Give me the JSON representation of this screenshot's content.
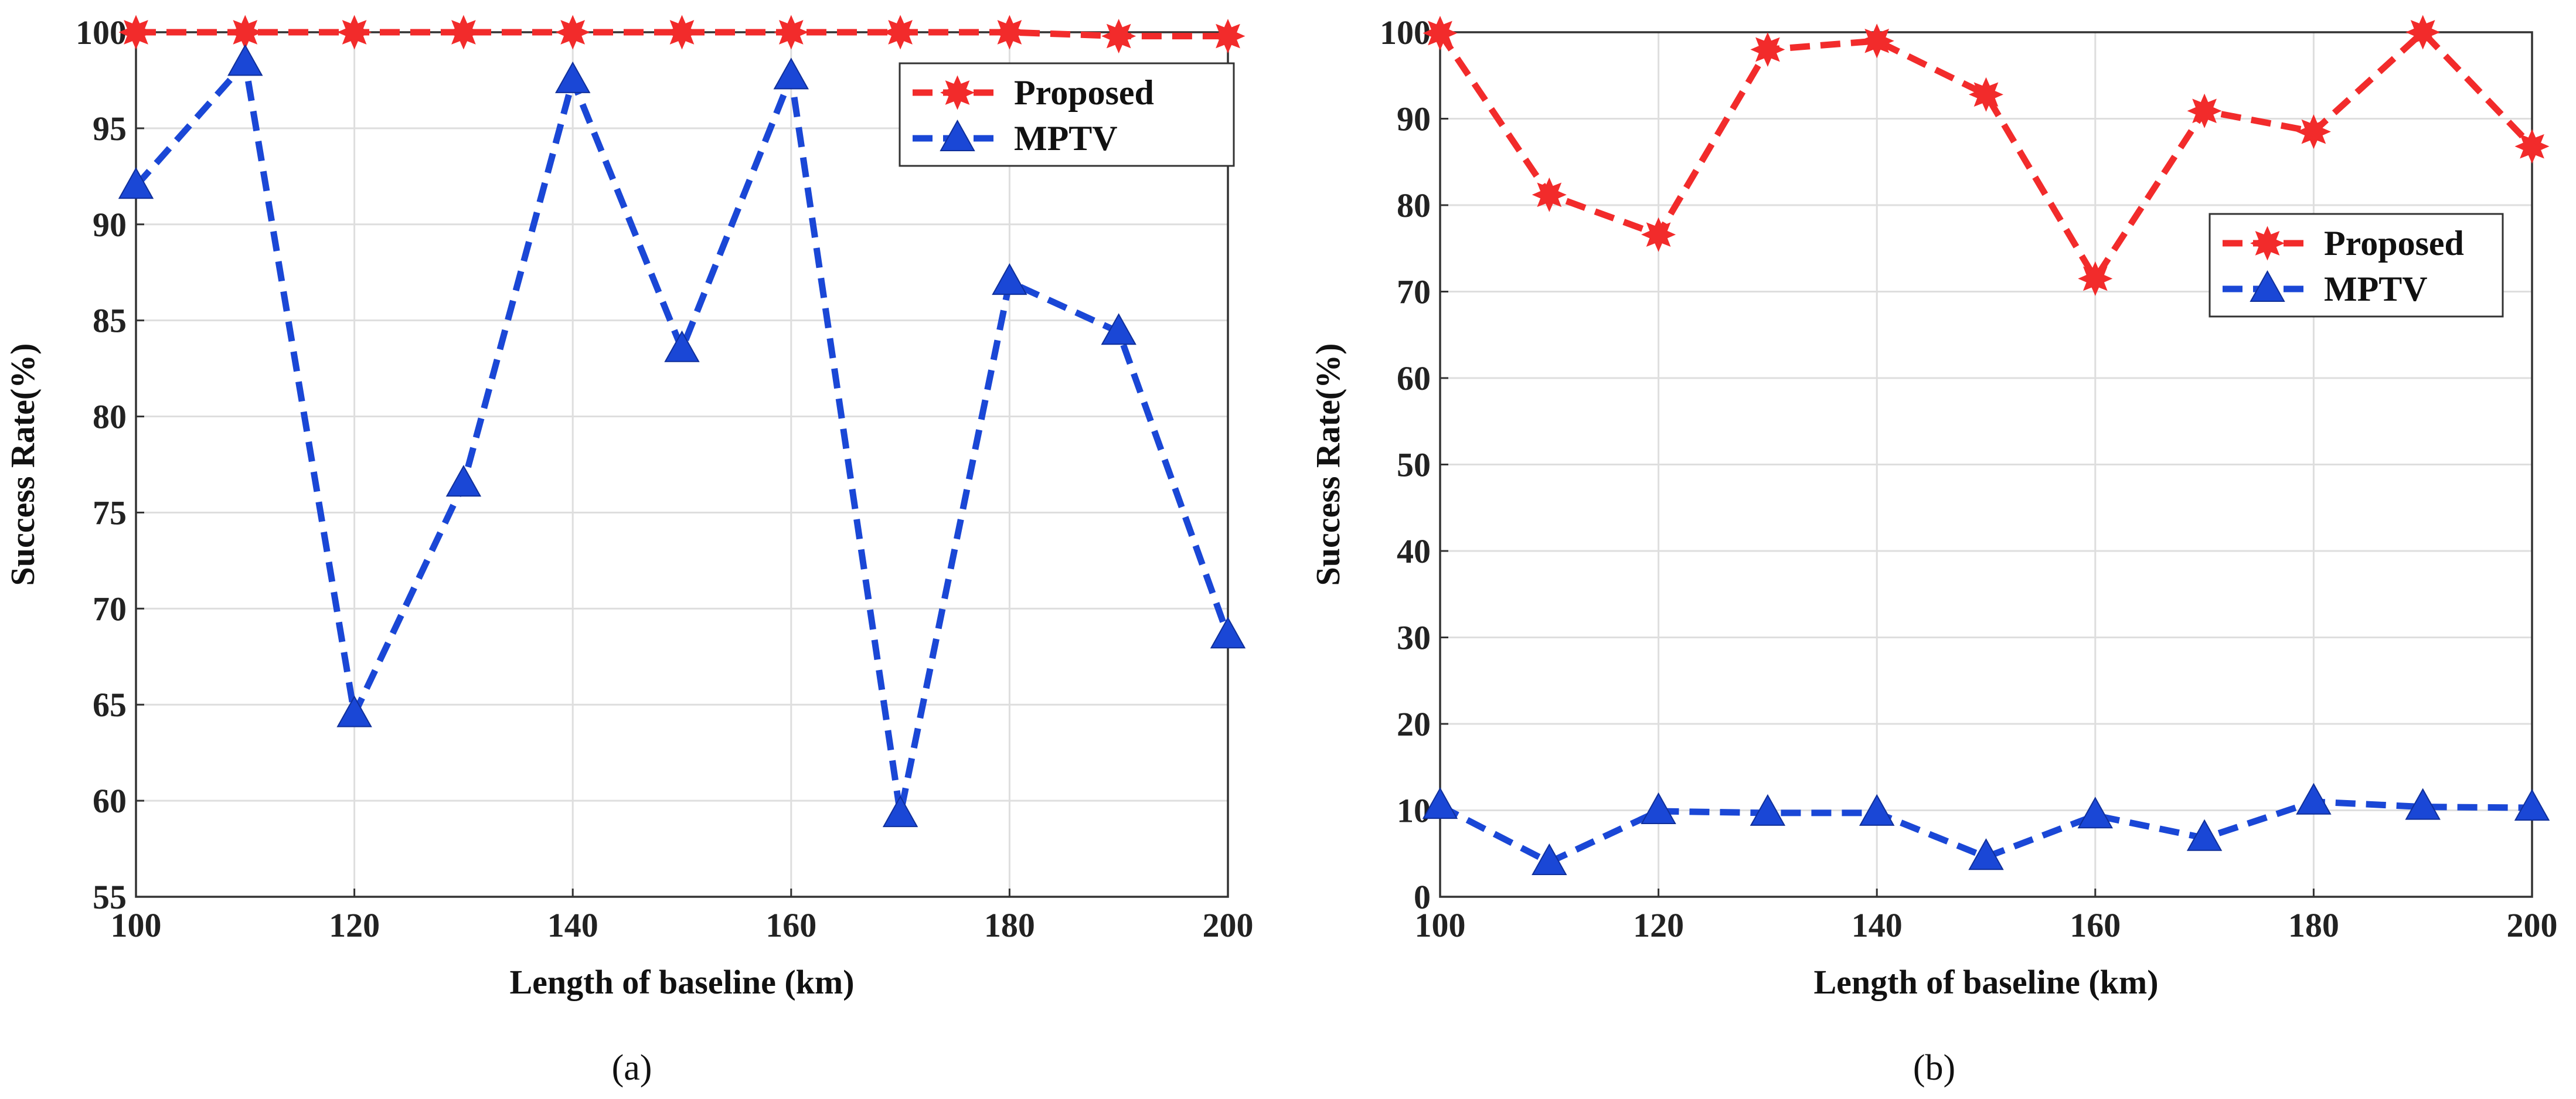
{
  "colors": {
    "proposed": "#f22b2b",
    "mptv": "#1a47d6",
    "grid": "#dedede",
    "axis": "#333333"
  },
  "chart_data": [
    {
      "type": "line",
      "panel_label": "(a)",
      "xlabel": "Length of baseline (km)",
      "ylabel": "Success Rate(%)",
      "x": [
        100,
        110,
        120,
        130,
        140,
        150,
        160,
        170,
        180,
        190,
        200
      ],
      "xlim": [
        100,
        200
      ],
      "ylim": [
        55,
        100
      ],
      "xticks": [
        100,
        120,
        140,
        160,
        180,
        200
      ],
      "yticks": [
        55,
        60,
        65,
        70,
        75,
        80,
        85,
        90,
        95,
        100
      ],
      "grid": true,
      "legend_position": "top-right",
      "series": [
        {
          "name": "Proposed",
          "marker": "star",
          "color_key": "proposed",
          "values": [
            100,
            100,
            100,
            100,
            100,
            100,
            100,
            100,
            100,
            99.8,
            99.8
          ]
        },
        {
          "name": "MPTV",
          "marker": "triangle",
          "color_key": "mptv",
          "values": [
            92,
            98.4,
            64.5,
            76.5,
            97.5,
            83.5,
            97.7,
            59.3,
            87,
            84.4,
            68.6
          ]
        }
      ]
    },
    {
      "type": "line",
      "panel_label": "(b)",
      "xlabel": "Length of baseline (km)",
      "ylabel": "Success Rate(%)",
      "x": [
        100,
        110,
        120,
        130,
        140,
        150,
        160,
        170,
        180,
        190,
        200
      ],
      "xlim": [
        100,
        200
      ],
      "ylim": [
        0,
        100
      ],
      "xticks": [
        100,
        120,
        140,
        160,
        180,
        200
      ],
      "yticks": [
        0,
        10,
        20,
        30,
        40,
        50,
        60,
        70,
        80,
        90,
        100
      ],
      "grid": true,
      "legend_position": "center-right",
      "series": [
        {
          "name": "Proposed",
          "marker": "star",
          "color_key": "proposed",
          "values": [
            99.9,
            81.2,
            76.6,
            98,
            99,
            92.8,
            71.5,
            90.9,
            88.5,
            100,
            86.8
          ]
        },
        {
          "name": "MPTV",
          "marker": "triangle",
          "color_key": "mptv",
          "values": [
            10.5,
            4,
            9.9,
            9.7,
            9.7,
            4.6,
            9.4,
            6.8,
            11,
            10.4,
            10.3
          ]
        }
      ]
    }
  ]
}
